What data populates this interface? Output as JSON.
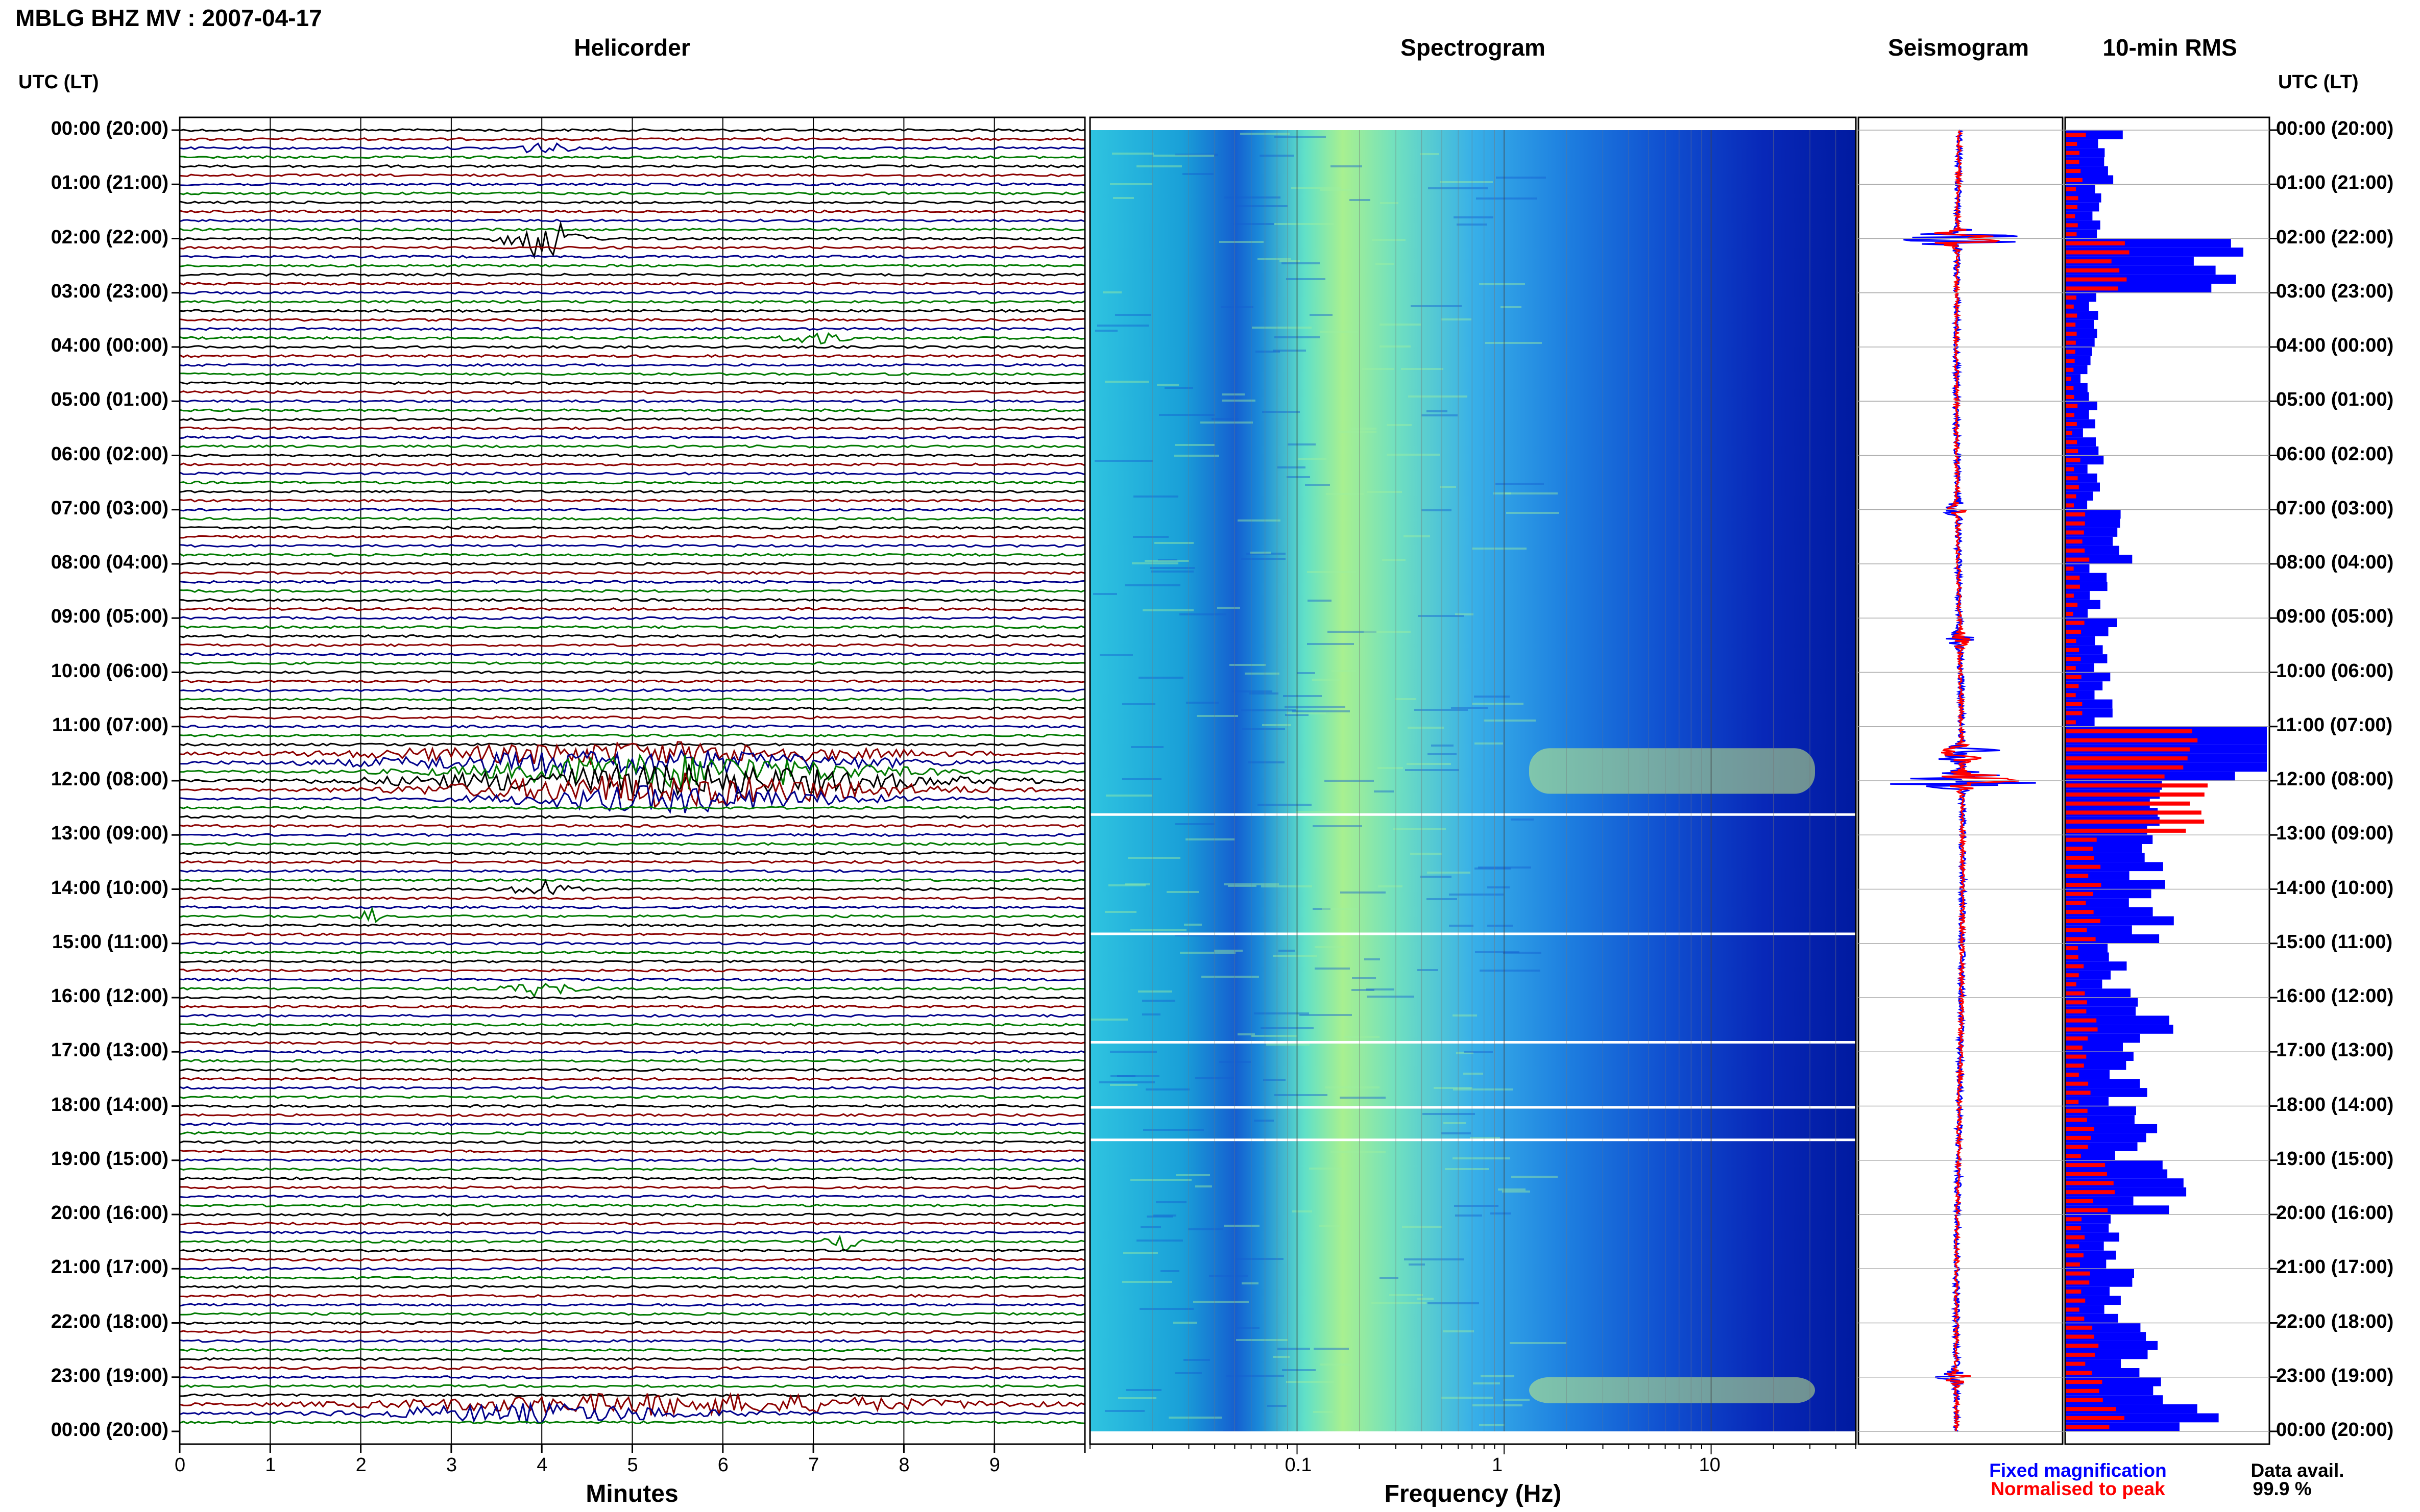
{
  "title": "MBLG BHZ MV : 2007-04-17",
  "panels": {
    "helicorder": "Helicorder",
    "spectrogram": "Spectrogram",
    "seismogram": "Seismogram",
    "rms": "10-min RMS"
  },
  "time_axis_title": "UTC (LT)",
  "time_labels": [
    "00:00 (20:00)",
    "01:00 (21:00)",
    "02:00 (22:00)",
    "03:00 (23:00)",
    "04:00 (00:00)",
    "05:00 (01:00)",
    "06:00 (02:00)",
    "07:00 (03:00)",
    "08:00 (04:00)",
    "09:00 (05:00)",
    "10:00 (06:00)",
    "11:00 (07:00)",
    "12:00 (08:00)",
    "13:00 (09:00)",
    "14:00 (10:00)",
    "15:00 (11:00)",
    "16:00 (12:00)",
    "17:00 (13:00)",
    "18:00 (14:00)",
    "19:00 (15:00)",
    "20:00 (16:00)",
    "21:00 (17:00)",
    "22:00 (18:00)",
    "23:00 (19:00)",
    "00:00 (20:00)"
  ],
  "minutes_ticks": [
    "0",
    "1",
    "2",
    "3",
    "4",
    "5",
    "6",
    "7",
    "8",
    "9"
  ],
  "freq_ticks": [
    "0.1",
    "1",
    "10"
  ],
  "xlabels": {
    "helicorder": "Minutes",
    "spectrogram": "Frequency (Hz)"
  },
  "legend": {
    "fixed": "Fixed magnification",
    "normalised": "Normalised to peak"
  },
  "data_avail": {
    "label": "Data avail.",
    "value": "99.9 %"
  },
  "colors": {
    "trace_black": "#000000",
    "trace_red": "#8b0000",
    "trace_blue": "#00008b",
    "trace_green": "#007a00",
    "fixed": "#0000ff",
    "normalised": "#ff0000"
  },
  "chart_data": {
    "type": "bar",
    "title": "10-min RMS",
    "categories": [
      "00:00",
      "01:00",
      "02:00",
      "03:00",
      "04:00",
      "05:00",
      "06:00",
      "07:00",
      "08:00",
      "09:00",
      "10:00",
      "11:00",
      "12:00",
      "13:00",
      "14:00",
      "15:00",
      "16:00",
      "17:00",
      "18:00",
      "19:00",
      "20:00",
      "21:00",
      "22:00",
      "23:00"
    ],
    "series": [
      {
        "name": "Fixed magnification",
        "values": [
          0.25,
          0.2,
          0.75,
          0.15,
          0.12,
          0.14,
          0.16,
          0.3,
          0.18,
          0.22,
          0.2,
          1.0,
          0.55,
          0.5,
          0.5,
          0.3,
          0.45,
          0.35,
          0.4,
          0.55,
          0.25,
          0.3,
          0.4,
          0.7
        ]
      },
      {
        "name": "Normalised to peak",
        "values": [
          0.1,
          0.08,
          0.3,
          0.06,
          0.05,
          0.06,
          0.07,
          0.12,
          0.07,
          0.09,
          0.08,
          0.65,
          0.9,
          0.2,
          0.18,
          0.1,
          0.15,
          0.12,
          0.14,
          0.25,
          0.1,
          0.12,
          0.16,
          0.3
        ]
      }
    ]
  }
}
